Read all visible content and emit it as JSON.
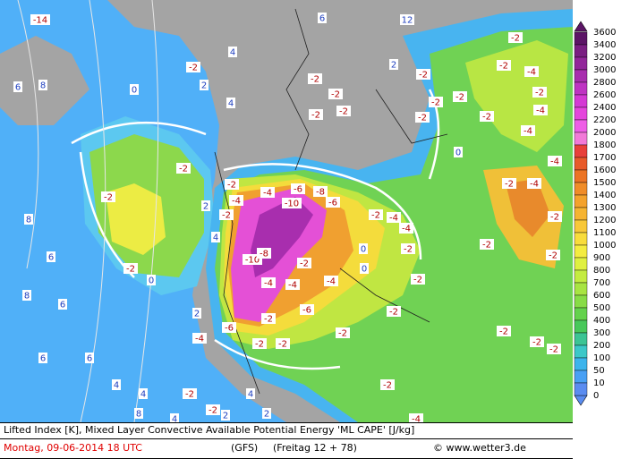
{
  "legend": {
    "labels": [
      "3600",
      "3400",
      "3200",
      "3000",
      "2800",
      "2600",
      "2400",
      "2200",
      "2000",
      "1800",
      "1700",
      "1600",
      "1500",
      "1400",
      "1300",
      "1200",
      "1100",
      "1000",
      "900",
      "800",
      "700",
      "600",
      "500",
      "400",
      "300",
      "200",
      "100",
      "50",
      "10",
      "0"
    ],
    "band_colors": [
      "#5c1566",
      "#7a1f82",
      "#92279a",
      "#a82eae",
      "#be34c2",
      "#d43ad4",
      "#e446dc",
      "#ee5ee6",
      "#f27ad8",
      "#e8403a",
      "#e85a2a",
      "#ec7424",
      "#f08c28",
      "#f4a22c",
      "#f6b432",
      "#f8c838",
      "#f8dc3c",
      "#f4ec40",
      "#e0f040",
      "#c4ec40",
      "#a8e442",
      "#88dc46",
      "#64d24c",
      "#48c85a",
      "#3cc494",
      "#3cc8c8",
      "#3cb4ec",
      "#48a0f4",
      "#5a8cf0"
    ]
  },
  "map": {
    "contour_labels": [
      "-14",
      "12",
      "6",
      "4",
      "4",
      "6",
      "8",
      "0",
      "-2",
      "2",
      "-2",
      "-2",
      "-2",
      "-2",
      "2",
      "-2",
      "-2",
      "-4",
      "-2",
      "-2",
      "-2",
      "-2",
      "-4",
      "-2",
      "-2",
      "-4",
      "0",
      "-4",
      "-2",
      "-2",
      "-2",
      "-4",
      "-6",
      "-8",
      "-10",
      "-6",
      "-4",
      "-2",
      "-4",
      "-2",
      "-4",
      "-2",
      "-4",
      "-2",
      "-10",
      "-8",
      "-4",
      "-4",
      "-6",
      "-4",
      "-2",
      "0",
      "-2",
      "-2",
      "-2",
      "-2",
      "0",
      "0",
      "-2",
      "-2",
      "-6",
      "-2",
      "-4",
      "-2",
      "-2",
      "-2",
      "-2",
      "-2",
      "-2",
      "-2",
      "-2",
      "-2",
      "-4",
      "6",
      "6",
      "6",
      "6",
      "8",
      "8",
      "4",
      "4",
      "2",
      "4",
      "8",
      "2",
      "4",
      "2",
      "2",
      "4"
    ]
  },
  "footer": {
    "description": "Lifted Index [K], Mixed Layer Convective Available Potential Energy 'ML CAPE' [J/kg]",
    "date": "Montag, 09-06-2014  18 UTC",
    "model": "(GFS)",
    "run": "(Freitag 12 + 78)",
    "credit": "© www.wetter3.de"
  }
}
